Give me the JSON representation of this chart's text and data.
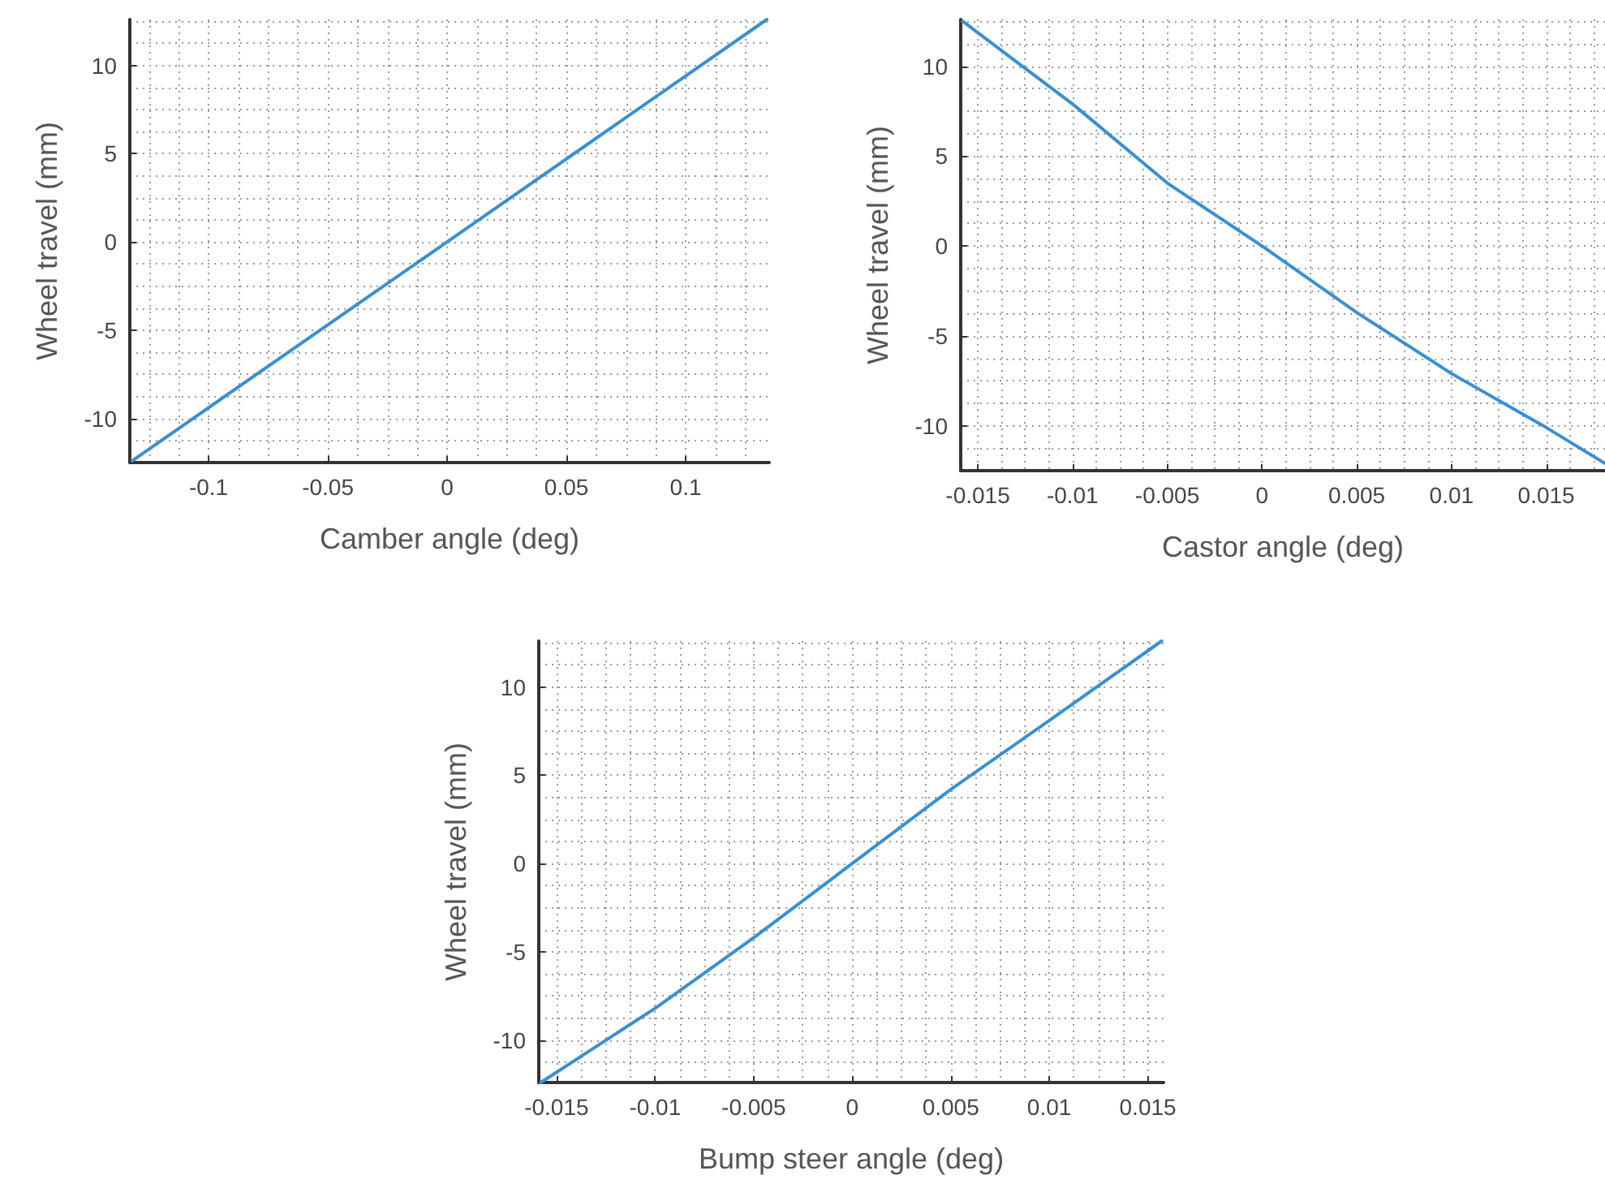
{
  "chart_data": [
    {
      "type": "line",
      "xlabel": "Camber angle (deg)",
      "ylabel": "Wheel travel (mm)",
      "x": [
        -0.132,
        0,
        0.134
      ],
      "series": [
        {
          "color": "#3b8fd0",
          "values": [
            -12.4,
            0,
            12.6
          ]
        }
      ],
      "xlim": [
        -0.133,
        0.135
      ],
      "ylim": [
        -12.5,
        12.6
      ],
      "xticks": [
        -0.1,
        -0.05,
        0,
        0.05,
        0.1
      ],
      "yticks": [
        -10,
        -5,
        0,
        5,
        10
      ],
      "grid": true,
      "marker": "none",
      "line_style": "solid"
    },
    {
      "type": "line",
      "xlabel": "Castor angle (deg)",
      "ylabel": "Wheel travel (mm)",
      "x": [
        -0.0158,
        -0.01,
        -0.005,
        0,
        0.005,
        0.01,
        0.015,
        0.0181
      ],
      "series": [
        {
          "color": "#3b8fd0",
          "values": [
            12.5,
            7.9,
            3.5,
            0,
            -3.7,
            -7.1,
            -10.1,
            -12.1
          ]
        }
      ],
      "xlim": [
        -0.0159,
        0.0181
      ],
      "ylim": [
        -12.5,
        12.6
      ],
      "xticks": [
        -0.015,
        -0.01,
        -0.005,
        0,
        0.005,
        0.01,
        0.015
      ],
      "yticks": [
        -10,
        -5,
        0,
        5,
        10
      ],
      "grid": true,
      "marker": "none",
      "line_style": "solid"
    },
    {
      "type": "line",
      "xlabel": "Bump steer angle (deg)",
      "ylabel": "Wheel travel (mm)",
      "x": [
        -0.0158,
        -0.01,
        -0.005,
        0,
        0.005,
        0.01,
        0.0157
      ],
      "series": [
        {
          "color": "#3b8fd0",
          "values": [
            -12.4,
            -8.2,
            -4.2,
            0,
            4.2,
            8.1,
            12.6
          ]
        }
      ],
      "xlim": [
        -0.0159,
        0.0158
      ],
      "ylim": [
        -12.4,
        12.6
      ],
      "xticks": [
        -0.015,
        -0.01,
        -0.005,
        0,
        0.005,
        0.01,
        0.015
      ],
      "yticks": [
        -10,
        -5,
        0,
        5,
        10
      ],
      "grid": true,
      "marker": "none",
      "line_style": "solid"
    }
  ]
}
